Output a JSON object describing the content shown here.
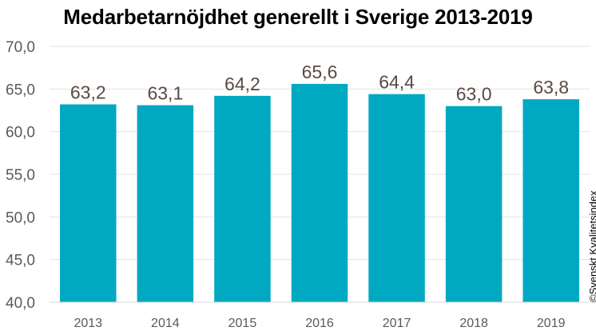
{
  "chart_data": {
    "type": "bar",
    "title": "Medarbetarnöjdhet generellt i Sverige 2013-2019",
    "categories": [
      "2013",
      "2014",
      "2015",
      "2016",
      "2017",
      "2018",
      "2019"
    ],
    "values": [
      63.2,
      63.1,
      64.2,
      65.6,
      64.4,
      63.0,
      63.8
    ],
    "data_labels": [
      "63,2",
      "63,1",
      "64,2",
      "65,6",
      "64,4",
      "63,0",
      "63,8"
    ],
    "ylim": [
      40,
      70
    ],
    "yticks": [
      40,
      45,
      50,
      55,
      60,
      65,
      70
    ],
    "ytick_labels": [
      "40,0",
      "45,0",
      "50,0",
      "55,0",
      "60,0",
      "65,0",
      "70,0"
    ],
    "xlabel": "",
    "ylabel": "",
    "grid": true,
    "bar_color": "#00A9C1",
    "label_color": "#5A4A42",
    "axis_text_color": "#595959",
    "credit": "©Svenskt Kvalitetsindex"
  }
}
